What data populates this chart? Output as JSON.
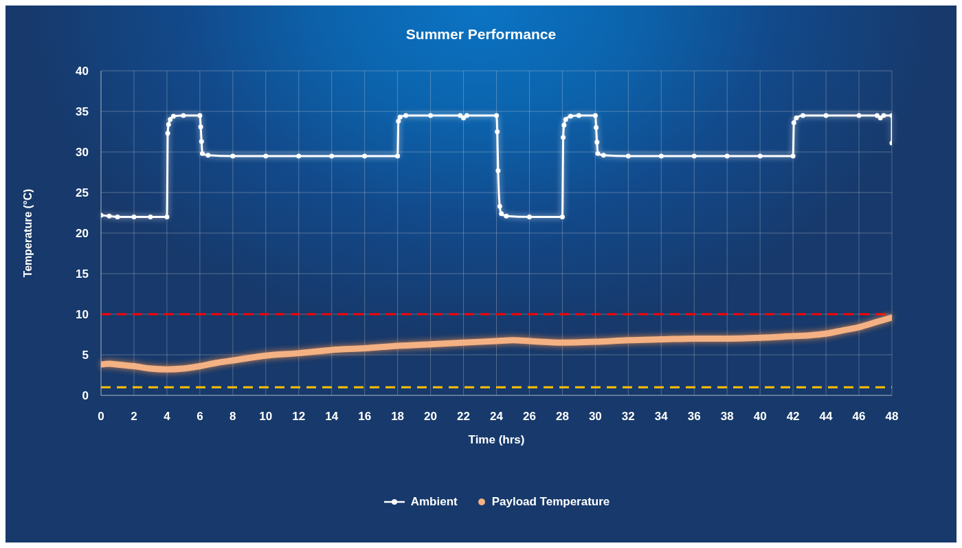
{
  "chart_data": {
    "type": "line",
    "title": "Summer Performance",
    "xlabel": "Time (hrs)",
    "ylabel": "Temperature (°C)",
    "xlim": [
      0,
      48
    ],
    "ylim": [
      0,
      40
    ],
    "xticks": [
      0,
      2,
      4,
      6,
      8,
      10,
      12,
      14,
      16,
      18,
      20,
      22,
      24,
      26,
      28,
      30,
      32,
      34,
      36,
      38,
      40,
      42,
      44,
      46,
      48
    ],
    "yticks": [
      0,
      5,
      10,
      15,
      20,
      25,
      30,
      35,
      40
    ],
    "grid": true,
    "legend": "bottom",
    "series": [
      {
        "name": "Ambient",
        "type": "line",
        "color": "#ffffff",
        "marker": "circle",
        "x": [
          0,
          0.5,
          1,
          2,
          3,
          4,
          4.05,
          4.1,
          4.2,
          4.4,
          5,
          6,
          6.05,
          6.1,
          6.15,
          6.5,
          8,
          10,
          12,
          14,
          16,
          18,
          18.05,
          18.15,
          18.5,
          20,
          21.8,
          22,
          22.2,
          24,
          24.05,
          24.1,
          24.2,
          24.3,
          24.6,
          26,
          28,
          28.05,
          28.1,
          28.2,
          28.5,
          29,
          30,
          30.05,
          30.1,
          30.15,
          30.5,
          32,
          34,
          36,
          38,
          40,
          42,
          42.05,
          42.2,
          42.6,
          44,
          46,
          47.1,
          47.3,
          47.5,
          48,
          48
        ],
        "values": [
          22.2,
          22.1,
          22,
          22,
          22,
          22,
          32.3,
          33.4,
          34,
          34.4,
          34.5,
          34.5,
          33.1,
          31.3,
          29.8,
          29.6,
          29.5,
          29.5,
          29.5,
          29.5,
          29.5,
          29.5,
          33.8,
          34.3,
          34.5,
          34.5,
          34.5,
          34.2,
          34.5,
          34.5,
          32.5,
          27.7,
          23.3,
          22.4,
          22.1,
          22,
          22,
          31.8,
          33.3,
          34,
          34.4,
          34.5,
          34.5,
          33,
          31.2,
          29.8,
          29.6,
          29.5,
          29.5,
          29.5,
          29.5,
          29.5,
          29.5,
          33.6,
          34.2,
          34.5,
          34.5,
          34.5,
          34.5,
          34.2,
          34.5,
          34.5,
          31.1
        ]
      },
      {
        "name": "Payload Temperature",
        "type": "line",
        "color": "#f4b183",
        "marker": "none",
        "x": [
          0,
          0.5,
          1,
          2,
          3,
          4,
          5,
          6,
          7,
          8,
          10,
          12,
          14,
          16,
          18,
          20,
          22,
          24,
          25,
          26,
          28,
          30,
          32,
          34,
          36,
          38,
          40,
          42,
          43,
          44,
          45,
          46,
          47,
          48
        ],
        "values": [
          3.8,
          3.9,
          3.8,
          3.6,
          3.3,
          3.2,
          3.3,
          3.6,
          4,
          4.3,
          4.9,
          5.2,
          5.6,
          5.8,
          6.1,
          6.3,
          6.5,
          6.7,
          6.8,
          6.7,
          6.5,
          6.6,
          6.8,
          6.9,
          7,
          7,
          7.1,
          7.3,
          7.4,
          7.6,
          8,
          8.4,
          9,
          9.6
        ]
      }
    ],
    "ref_lines": [
      {
        "axis": "y",
        "value": 10,
        "color": "#ff0000",
        "line_style": "dashed"
      },
      {
        "axis": "y",
        "value": 1,
        "color": "#ffc000",
        "line_style": "dashed"
      }
    ]
  }
}
